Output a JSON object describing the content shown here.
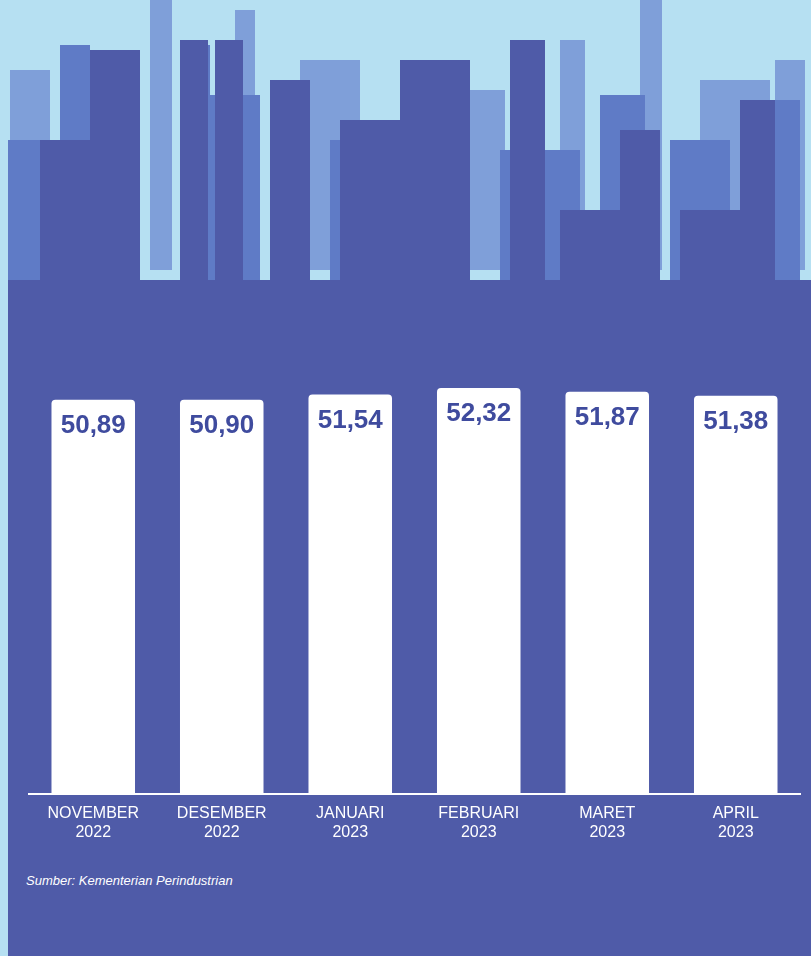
{
  "chart_data": {
    "type": "bar",
    "categories": [
      "NOVEMBER 2022",
      "DESEMBER 2022",
      "JANUARI 2023",
      "FEBRUARI 2023",
      "MARET 2023",
      "APRIL 2023"
    ],
    "values": [
      50.89,
      50.9,
      51.54,
      52.32,
      51.87,
      51.38
    ],
    "value_labels": [
      "50,89",
      "50,90",
      "51,54",
      "52,32",
      "51,87",
      "51,38"
    ],
    "color": "#ffffff",
    "ylim": [
      3,
      55
    ],
    "grid": false,
    "data_labels": true,
    "tick_labels": "x"
  },
  "source": "Sumber: Kementerian Perindustrian"
}
